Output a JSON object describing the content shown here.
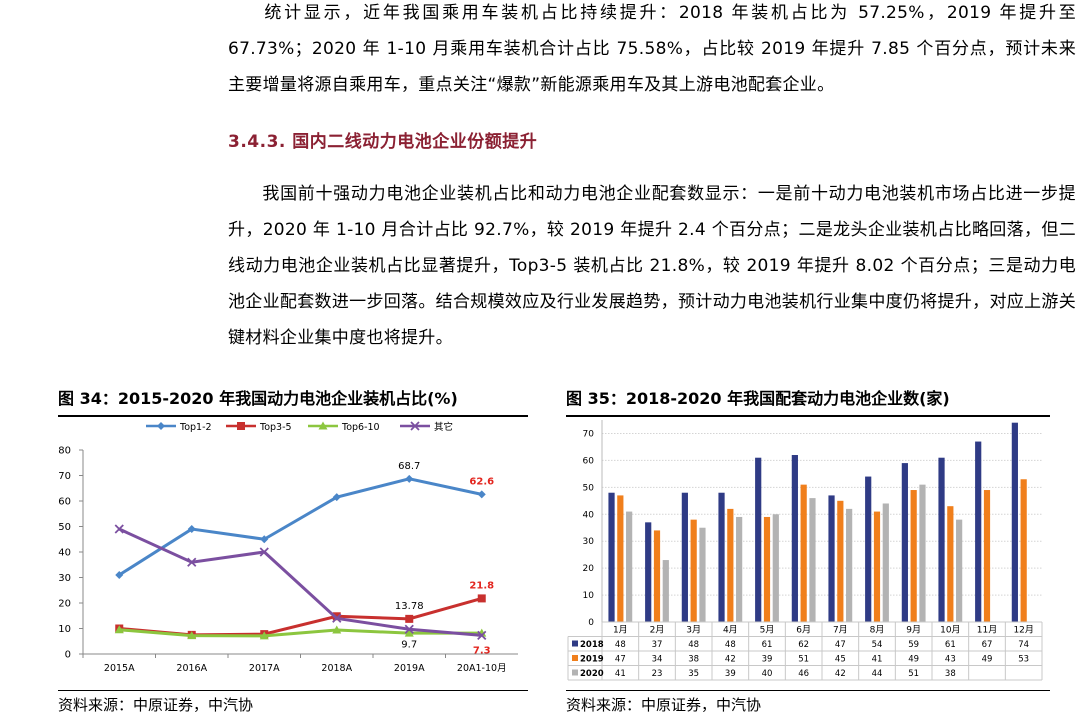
{
  "paragraph1": "统计显示，近年我国乘用车装机占比持续提升：2018 年装机占比为 57.25%，2019 年提升至 67.73%；2020 年 1-10 月乘用车装机合计占比 75.58%，占比较 2019 年提升 7.85 个百分点，预计未来主要增量将源自乘用车，重点关注“爆款”新能源乘用车及其上游电池配套企业。",
  "section_title": "3.4.3. 国内二线动力电池企业份额提升",
  "paragraph2": "我国前十强动力电池企业装机占比和动力电池企业配套数显示：一是前十动力电池装机市场占比进一步提升，2020 年 1-10 月合计占比 92.7%，较 2019 年提升 2.4 个百分点；二是龙头企业装机占比略回落，但二线动力电池企业装机占比显著提升，Top3-5 装机占比 21.8%，较 2019 年提升 8.02 个百分点；三是动力电池企业配套数进一步回落。结合规模效应及行业发展趋势，预计动力电池装机行业集中度仍将提升，对应上游关键材料企业集中度也将提升。",
  "figure34": {
    "title": "图 34：2015-2020 年我国动力电池企业装机占比(%)",
    "source": "资料来源：中原证券，中汽协"
  },
  "figure35": {
    "title": "图 35：2018-2020 年我国配套动力电池企业数(家)",
    "source": "资料来源：中原证券，中汽协"
  },
  "chart_data": [
    {
      "type": "line",
      "categories": [
        "2015A",
        "2016A",
        "2017A",
        "2018A",
        "2019A",
        "20A1-10月"
      ],
      "ylim": [
        0,
        80
      ],
      "yticks": [
        0,
        10,
        20,
        30,
        40,
        50,
        60,
        70,
        80
      ],
      "series": [
        {
          "name": "Top1-2",
          "color": "#4a86c8",
          "marker": "diamond",
          "values": [
            31,
            49,
            45,
            61.5,
            68.7,
            62.6
          ]
        },
        {
          "name": "Top3-5",
          "color": "#c8302e",
          "marker": "square",
          "values": [
            10,
            7.5,
            7.8,
            14.8,
            13.78,
            21.8
          ]
        },
        {
          "name": "Top6-10",
          "color": "#8cc63f",
          "marker": "triangle",
          "values": [
            9.5,
            7.2,
            7.1,
            9.4,
            8.2,
            8.2
          ]
        },
        {
          "name": "其它",
          "color": "#7b4fa0",
          "marker": "cross",
          "values": [
            49,
            36,
            40,
            14,
            9.7,
            7.3
          ]
        }
      ],
      "labels": [
        {
          "text": "68.7",
          "series": 0,
          "index": 4,
          "color": "#000000",
          "pos": "above"
        },
        {
          "text": "62.6",
          "series": 0,
          "index": 5,
          "color": "#e3261f",
          "pos": "above"
        },
        {
          "text": "21.8",
          "series": 1,
          "index": 5,
          "color": "#e3261f",
          "pos": "above"
        },
        {
          "text": "13.78",
          "series": 1,
          "index": 4,
          "color": "#000000",
          "pos": "above"
        },
        {
          "text": "9.7",
          "series": 3,
          "index": 4,
          "color": "#000000",
          "pos": "below"
        },
        {
          "text": "7.3",
          "series": 3,
          "index": 5,
          "color": "#e3261f",
          "pos": "below"
        }
      ]
    },
    {
      "type": "bar",
      "categories": [
        "1月",
        "2月",
        "3月",
        "4月",
        "5月",
        "6月",
        "7月",
        "8月",
        "9月",
        "10月",
        "11月",
        "12月"
      ],
      "ylim": [
        0,
        75
      ],
      "yticks": [
        0,
        10,
        20,
        30,
        40,
        50,
        60,
        70
      ],
      "series": [
        {
          "name": "2018",
          "color": "#2f3b85",
          "values": [
            48,
            37,
            48,
            48,
            61,
            62,
            47,
            54,
            59,
            61,
            67,
            74
          ]
        },
        {
          "name": "2019",
          "color": "#f07f1c",
          "values": [
            47,
            34,
            38,
            42,
            39,
            51,
            45,
            41,
            49,
            43,
            49,
            53
          ]
        },
        {
          "name": "2020",
          "color": "#b3b3b3",
          "values": [
            41,
            23,
            35,
            39,
            40,
            46,
            42,
            44,
            51,
            38,
            null,
            null
          ]
        }
      ]
    }
  ]
}
